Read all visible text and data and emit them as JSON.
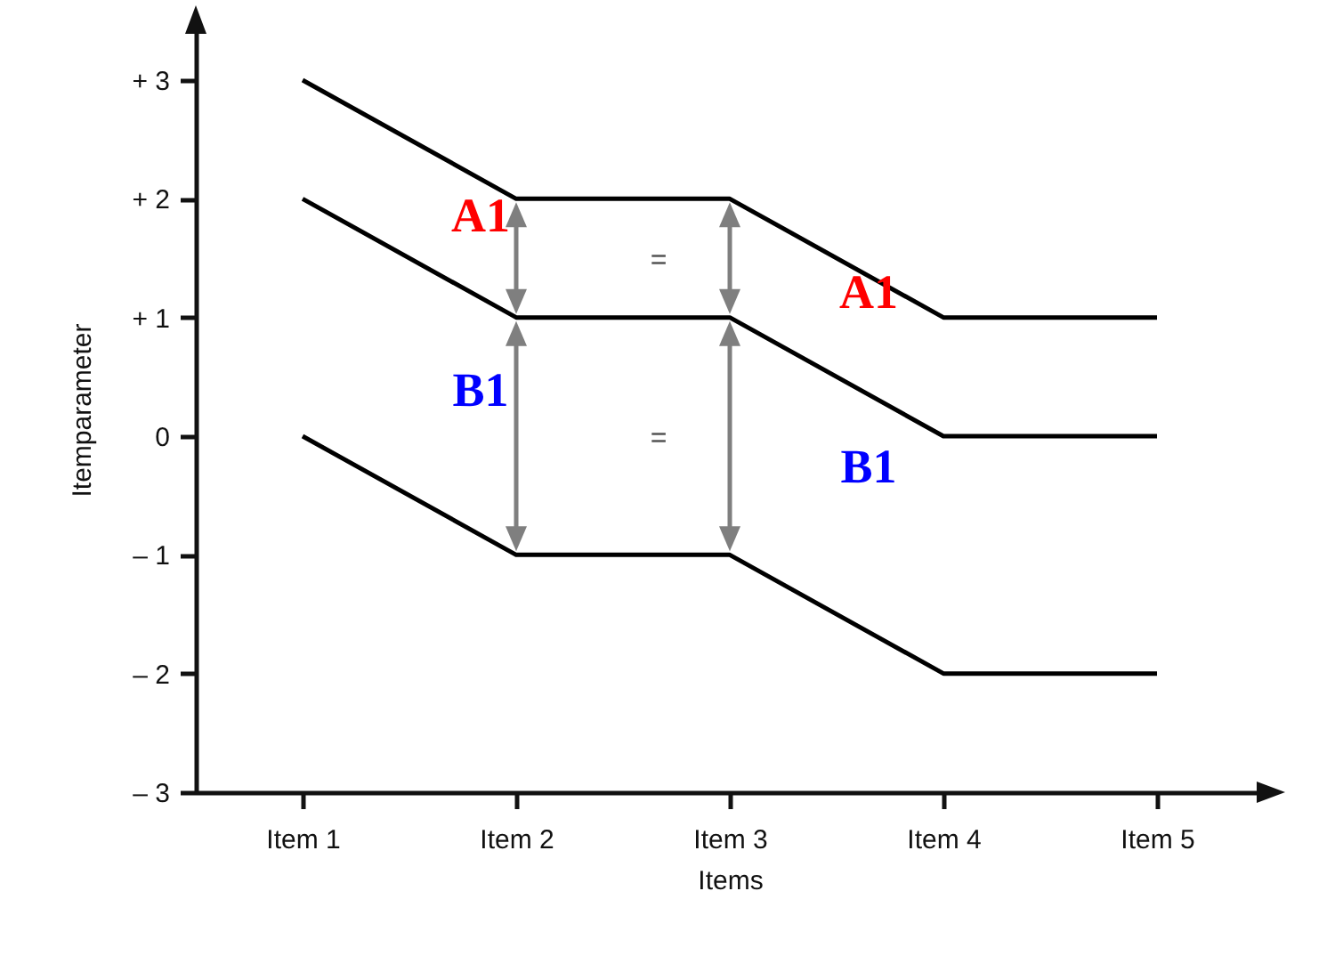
{
  "chart_data": {
    "type": "line",
    "xlabel": "Items",
    "ylabel": "Itemparameter",
    "categories": [
      "Item 1",
      "Item 2",
      "Item 3",
      "Item 4",
      "Item 5"
    ],
    "series": [
      {
        "color": "#000000",
        "values": [
          3,
          2,
          2,
          1,
          1
        ]
      },
      {
        "color": "#000000",
        "values": [
          2,
          1,
          1,
          0,
          0
        ]
      },
      {
        "color": "#000000",
        "values": [
          0,
          -1,
          -1,
          -2,
          -2
        ]
      }
    ],
    "ylim": [
      -3,
      3.45
    ],
    "yticks": [
      {
        "value": 3,
        "label": "+ 3"
      },
      {
        "value": 2,
        "label": "+ 2"
      },
      {
        "value": 1,
        "label": "+ 1"
      },
      0,
      {
        "value": -1,
        "label": "– 1"
      },
      {
        "value": -2,
        "label": "– 2"
      },
      {
        "value": -3,
        "label": "– 3"
      }
    ],
    "annotations": [
      "A1",
      "B1",
      "A1",
      "B1",
      "=",
      "="
    ],
    "grid": false,
    "marker": "none",
    "line_style": "solid"
  }
}
